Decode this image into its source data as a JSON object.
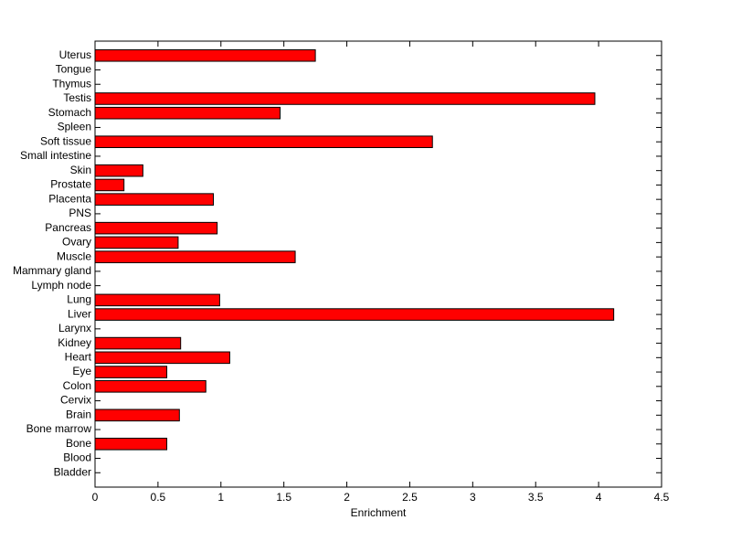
{
  "chart_data": {
    "type": "barh",
    "x_label": "Enrichment",
    "categories": [
      "Bladder",
      "Blood",
      "Bone",
      "Bone marrow",
      "Brain",
      "Cervix",
      "Colon",
      "Eye",
      "Heart",
      "Kidney",
      "Larynx",
      "Liver",
      "Lung",
      "Lymph node",
      "Mammary gland",
      "Muscle",
      "Ovary",
      "Pancreas",
      "PNS",
      "Placenta",
      "Prostate",
      "Skin",
      "Small intestine",
      "Soft tissue",
      "Spleen",
      "Stomach",
      "Testis",
      "Thymus",
      "Tongue",
      "Uterus"
    ],
    "values": [
      0,
      0,
      0.57,
      0,
      0.67,
      0,
      0.88,
      0.57,
      1.07,
      0.68,
      0,
      4.12,
      0.99,
      0,
      0,
      1.59,
      0.66,
      0.97,
      0,
      0.94,
      0.23,
      0.38,
      0,
      2.68,
      0,
      1.47,
      3.97,
      0,
      0,
      1.75
    ],
    "color": "#ff0000",
    "xlim": [
      0,
      4.5
    ],
    "xticks": [
      0,
      0.5,
      1,
      1.5,
      2,
      2.5,
      3,
      3.5,
      4,
      4.5
    ]
  }
}
